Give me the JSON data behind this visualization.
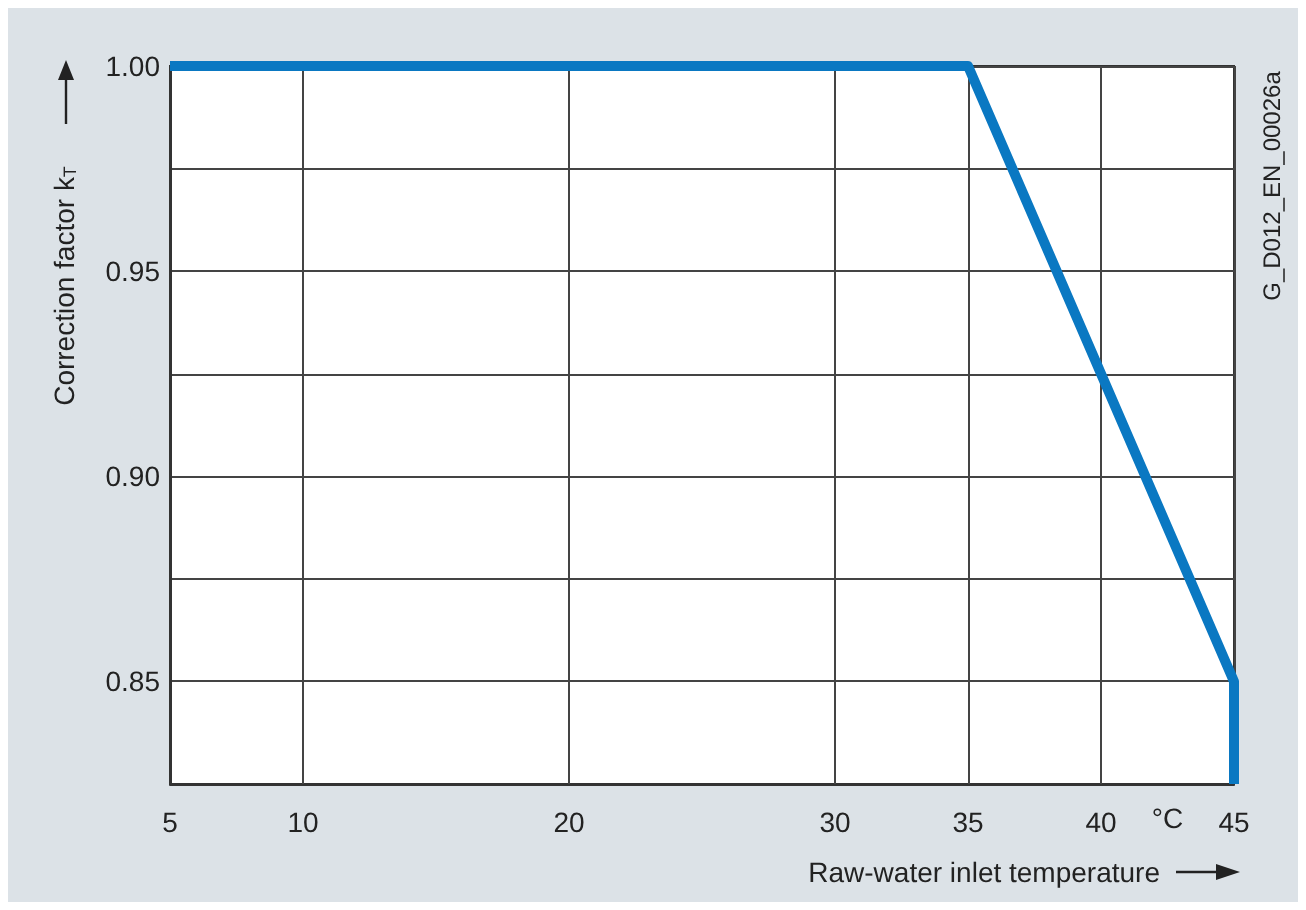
{
  "chart_data": {
    "type": "line",
    "xlabel": "Raw-water inlet temperature",
    "ylabel": "Correction factor k$_{T}$",
    "annotations": [
      "°C",
      "G_D012_EN_00026a"
    ],
    "x": [
      5,
      35,
      45,
      45
    ],
    "series": [
      {
        "color": "#0a78c2",
        "values": [
          1.0,
          1.0,
          0.85,
          0.825
        ]
      }
    ],
    "xlim": [
      5,
      45
    ],
    "xticks": [
      5,
      10,
      20,
      30,
      35,
      40,
      45
    ],
    "ylim": [
      0.825,
      1.0
    ],
    "yticks": [
      {
        "value": 0.85,
        "label": "0.85"
      },
      {
        "value": 0.875,
        "label": null
      },
      {
        "value": 0.9,
        "label": "0.90"
      },
      {
        "value": 0.925,
        "label": null
      },
      {
        "value": 0.95,
        "label": "0.95"
      },
      {
        "value": 0.975,
        "label": null
      },
      {
        "value": 1.0,
        "label": "1.00"
      }
    ],
    "grid": true,
    "marker": "none",
    "line_style": "solid"
  }
}
